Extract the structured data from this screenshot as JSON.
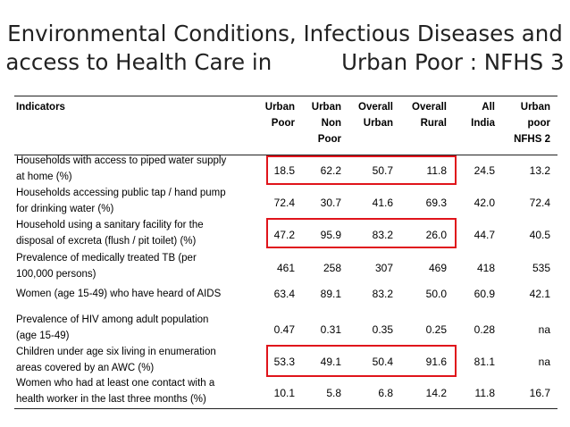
{
  "title": {
    "line1": "Environmental Conditions, Infectious Diseases and",
    "line2": "access to Health Care in          Urban Poor : NFHS 3"
  },
  "table": {
    "headers": [
      {
        "label": "Indicators"
      },
      {
        "lines": [
          "Urban",
          "Poor"
        ]
      },
      {
        "lines": [
          "Urban",
          "Non",
          "Poor"
        ]
      },
      {
        "lines": [
          "Overall",
          "Urban"
        ]
      },
      {
        "lines": [
          "Overall",
          "Rural"
        ]
      },
      {
        "lines": [
          "All",
          "India"
        ]
      },
      {
        "lines": [
          "Urban",
          "poor",
          "NFHS 2"
        ]
      }
    ],
    "rows": [
      {
        "indicator": [
          "Households with access to piped water supply",
          "at home (%)"
        ],
        "values": [
          "18.5",
          "62.2",
          "50.7",
          "11.8",
          "24.5",
          "13.2"
        ]
      },
      {
        "indicator": [
          "Households accessing public tap / hand pump",
          "for drinking water (%)"
        ],
        "values": [
          "72.4",
          "30.7",
          "41.6",
          "69.3",
          "42.0",
          "72.4"
        ]
      },
      {
        "indicator": [
          "Household using a sanitary facility for the",
          "disposal of excreta (flush / pit toilet) (%)"
        ],
        "values": [
          "47.2",
          "95.9",
          "83.2",
          "26.0",
          "44.7",
          "40.5"
        ]
      },
      {
        "indicator": [
          "Prevalence of medically treated TB (per",
          "100,000 persons)"
        ],
        "values": [
          "461",
          "258",
          "307",
          "469",
          "418",
          "535"
        ]
      },
      {
        "indicator": [
          "Women (age 15-49) who have heard of AIDS"
        ],
        "values": [
          "63.4",
          "89.1",
          "83.2",
          "50.0",
          "60.9",
          "42.1"
        ]
      },
      {
        "indicator": [
          "Prevalence of HIV among adult population",
          "(age 15-49)"
        ],
        "values": [
          "0.47",
          "0.31",
          "0.35",
          "0.25",
          "0.28",
          "na"
        ]
      },
      {
        "indicator": [
          "Children under age six living in enumeration",
          "areas covered by an AWC (%)"
        ],
        "values": [
          "53.3",
          "49.1",
          "50.4",
          "91.6",
          "81.1",
          "na"
        ]
      },
      {
        "indicator": [
          "Women who had at least one contact with a",
          "health worker in the last three months (%)"
        ],
        "values": [
          "10.1",
          "5.8",
          "6.8",
          "14.2",
          "11.8",
          "16.7"
        ]
      }
    ]
  },
  "colors": {
    "highlight": "#e0141b",
    "rule": "#222222"
  }
}
